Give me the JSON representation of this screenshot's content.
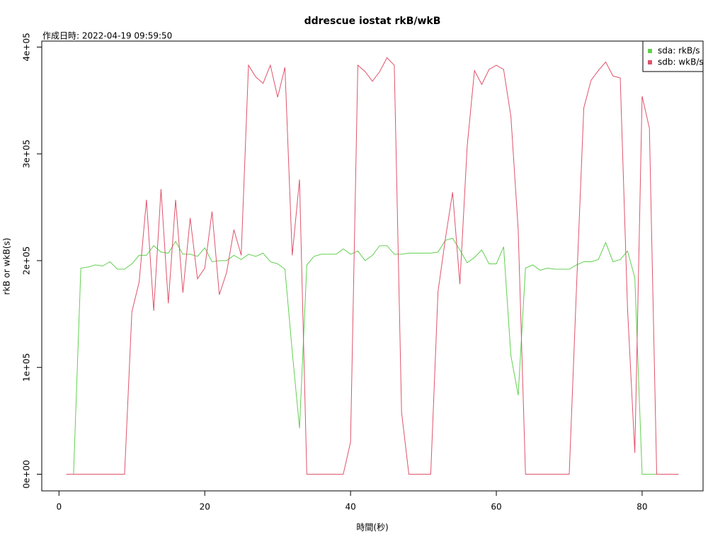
{
  "chart_data": {
    "type": "line",
    "title": "ddrescue iostat rkB/wkB",
    "subtitle": "作成日時: 2022-04-19 09:59:50",
    "x_label": "時間(秒)",
    "y_label": "rkB or wkB(s)",
    "x": [
      1,
      2,
      3,
      4,
      5,
      6,
      7,
      8,
      9,
      10,
      11,
      12,
      13,
      14,
      15,
      16,
      17,
      18,
      19,
      20,
      21,
      22,
      23,
      24,
      25,
      26,
      27,
      28,
      29,
      30,
      31,
      32,
      33,
      34,
      35,
      36,
      37,
      38,
      39,
      40,
      41,
      42,
      43,
      44,
      45,
      46,
      47,
      48,
      49,
      50,
      51,
      52,
      53,
      54,
      55,
      56,
      57,
      58,
      59,
      60,
      61,
      62,
      63,
      64,
      65,
      66,
      67,
      68,
      69,
      70,
      71,
      72,
      73,
      74,
      75,
      76,
      77,
      78,
      79,
      80,
      81,
      82,
      83,
      84,
      85
    ],
    "series": [
      {
        "name": "sda: rkB/s",
        "color": "#61d04f",
        "values": [
          0,
          0,
          193000,
          194000,
          196000,
          195000,
          199000,
          192000,
          192000,
          197000,
          205000,
          205000,
          214000,
          208000,
          207000,
          218000,
          206000,
          206000,
          204000,
          212000,
          199000,
          200000,
          200000,
          205000,
          201000,
          206000,
          204000,
          207000,
          199000,
          197000,
          192000,
          115000,
          43000,
          196000,
          204000,
          206000,
          206000,
          206000,
          211000,
          206000,
          209000,
          200000,
          205000,
          214000,
          214000,
          206000,
          206000,
          207000,
          207000,
          207000,
          207000,
          208000,
          219000,
          221000,
          210000,
          198000,
          203000,
          210000,
          197000,
          197000,
          213000,
          111000,
          74000,
          193000,
          196000,
          191000,
          193000,
          192000,
          192000,
          192000,
          196000,
          199000,
          199000,
          201000,
          217000,
          199000,
          201000,
          209000,
          184000,
          0,
          0,
          0,
          0,
          0,
          0
        ]
      },
      {
        "name": "sdb: wkB/s",
        "color": "#df536b",
        "values": [
          0,
          0,
          0,
          0,
          0,
          0,
          0,
          0,
          0,
          152000,
          180000,
          257000,
          153000,
          267000,
          160000,
          257000,
          170000,
          240000,
          183000,
          193000,
          246000,
          168000,
          189000,
          229000,
          205000,
          383000,
          372000,
          366000,
          383000,
          353000,
          381000,
          205000,
          276000,
          0,
          0,
          0,
          0,
          0,
          0,
          30000,
          383000,
          377000,
          368000,
          377000,
          390000,
          383000,
          58000,
          0,
          0,
          0,
          0,
          171000,
          220000,
          264000,
          178000,
          307000,
          378000,
          365000,
          379000,
          383000,
          379000,
          335000,
          229000,
          0,
          0,
          0,
          0,
          0,
          0,
          0,
          175000,
          343000,
          369000,
          378000,
          386000,
          373000,
          371000,
          155000,
          20000,
          354000,
          324000,
          0,
          0,
          0,
          0
        ]
      }
    ],
    "xlim": [
      -2.36,
      88.36
    ],
    "ylim": [
      -15600,
      405600
    ],
    "xticks": [
      0,
      20,
      40,
      60,
      80
    ],
    "yticks": [
      {
        "value": 0,
        "label": "0e+00"
      },
      {
        "value": 100000,
        "label": "1e+05"
      },
      {
        "value": 200000,
        "label": "2e+05"
      },
      {
        "value": 300000,
        "label": "3e+05"
      },
      {
        "value": 400000,
        "label": "4e+05"
      }
    ],
    "legend": "top-right"
  }
}
